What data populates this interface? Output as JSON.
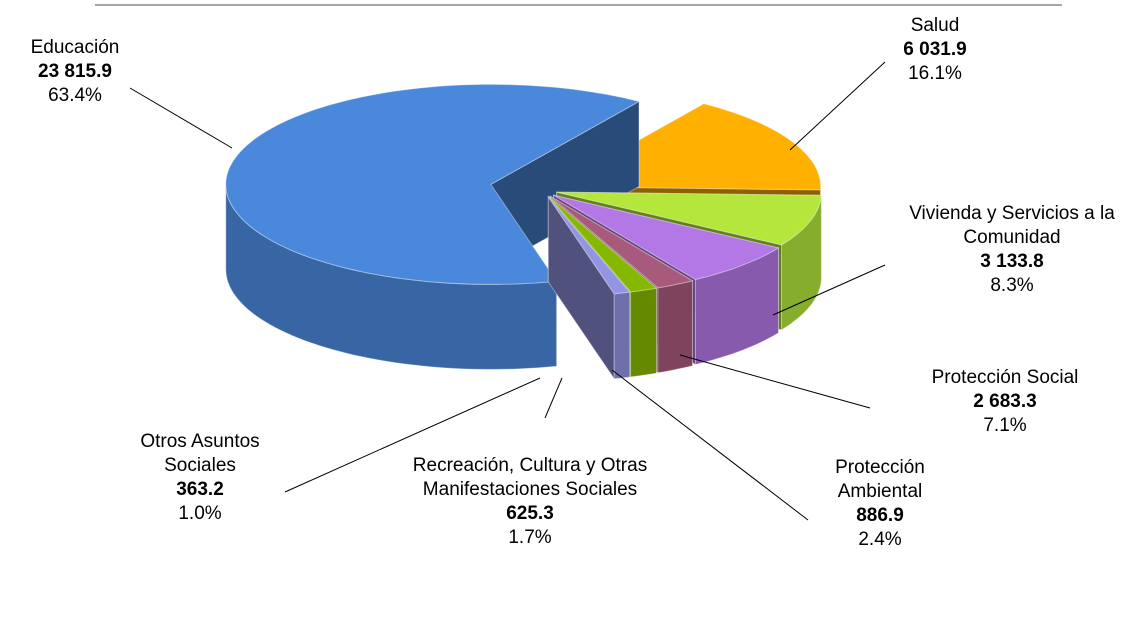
{
  "chart_data": {
    "type": "pie",
    "categories": [
      "Salud",
      "Vivienda y Servicios a la Comunidad",
      "Protección Social",
      "Protección Ambiental",
      "Recreación, Cultura y Otras Manifestaciones Sociales",
      "Otros Asuntos Sociales",
      "Educación"
    ],
    "values": [
      6031.9,
      3133.8,
      2683.3,
      886.9,
      625.3,
      363.2,
      23815.9
    ],
    "value_labels": [
      "6 031.9",
      "3 133.8",
      "2 683.3",
      "886.9",
      "625.3",
      "363.2",
      "23 815.9"
    ],
    "percentages": [
      16.1,
      8.3,
      7.1,
      2.4,
      1.7,
      1.0,
      63.4
    ],
    "percentage_labels": [
      "16.1%",
      "8.3%",
      "7.1%",
      "2.4%",
      "1.7%",
      "1.0%",
      "63.4%"
    ],
    "colors": [
      "#ffb000",
      "#b4e63c",
      "#b478e6",
      "#a85a7c",
      "#86b800",
      "#9494e4",
      "#4a88dc"
    ]
  }
}
